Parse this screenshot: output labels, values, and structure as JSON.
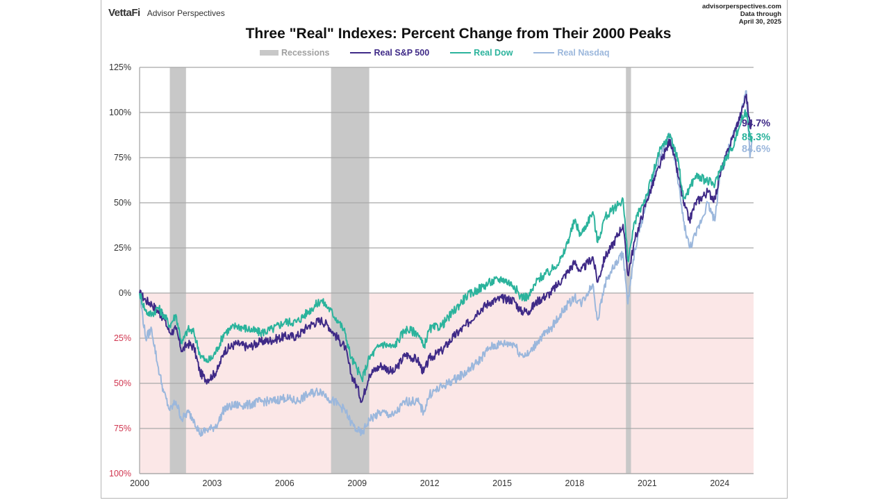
{
  "header": {
    "brand_logo": "VettaFi",
    "brand_name": "Advisor Perspectives",
    "source_site": "advisorperspectives.com",
    "data_through_label": "Data through",
    "data_through_date": "April 30, 2025"
  },
  "colors": {
    "sp500": "#3f2a87",
    "dow": "#2bb39c",
    "nasdaq": "#9bb7dc",
    "recession": "#c8c8c8",
    "negative_zone": "#fbe7e7",
    "negative_tick": "#d0354f",
    "grid": "#a8a8a8"
  },
  "chart_data": {
    "type": "line",
    "title": "Three \"Real\" Indexes: Percent Change from Their 2000 Peaks",
    "xlabel": "",
    "ylabel": "",
    "xlim": [
      2000.0,
      2025.4
    ],
    "ylim": [
      -100,
      125
    ],
    "x_ticks": [
      2000,
      2003,
      2006,
      2009,
      2012,
      2015,
      2018,
      2021,
      2024
    ],
    "x_tick_labels": [
      "2000",
      "2003",
      "2006",
      "2009",
      "2012",
      "2015",
      "2018",
      "2021",
      "2024"
    ],
    "y_ticks": [
      125,
      100,
      75,
      50,
      25,
      0,
      -25,
      -50,
      -75,
      -100
    ],
    "y_tick_labels": [
      "125%",
      "100%",
      "75%",
      "50%",
      "25%",
      "0%",
      "25%",
      "50%",
      "75%",
      "100%"
    ],
    "grid": true,
    "legend_position": "top-center",
    "legend": [
      "Recessions",
      "Real S&P 500",
      "Real Dow",
      "Real Nasdaq"
    ],
    "recessions": [
      {
        "start": 2001.25,
        "end": 2001.92
      },
      {
        "start": 2007.92,
        "end": 2009.5
      },
      {
        "start": 2020.12,
        "end": 2020.33
      }
    ],
    "x": [
      2000.0,
      2000.25,
      2000.5,
      2000.75,
      2001.0,
      2001.25,
      2001.5,
      2001.75,
      2002.0,
      2002.25,
      2002.5,
      2002.75,
      2003.0,
      2003.25,
      2003.5,
      2004.0,
      2004.5,
      2005.0,
      2005.5,
      2006.0,
      2006.5,
      2007.0,
      2007.5,
      2007.8,
      2008.25,
      2008.5,
      2008.75,
      2009.0,
      2009.2,
      2009.5,
      2010.0,
      2010.5,
      2011.0,
      2011.5,
      2011.75,
      2012.0,
      2012.5,
      2013.0,
      2013.5,
      2014.0,
      2014.5,
      2015.0,
      2015.5,
      2015.75,
      2016.1,
      2016.5,
      2017.0,
      2017.5,
      2018.0,
      2018.25,
      2018.75,
      2018.95,
      2019.25,
      2019.5,
      2020.0,
      2020.2,
      2020.5,
      2021.0,
      2021.5,
      2021.95,
      2022.3,
      2022.5,
      2022.75,
      2023.0,
      2023.5,
      2023.8,
      2024.0,
      2024.5,
      2024.9,
      2025.1,
      2025.25,
      2025.33
    ],
    "series": [
      {
        "name": "Real S&P 500",
        "end_label": "94.7%",
        "values": [
          0,
          -4,
          -6,
          -10,
          -14,
          -22,
          -20,
          -32,
          -28,
          -30,
          -44,
          -48,
          -46,
          -42,
          -32,
          -28,
          -30,
          -27,
          -26,
          -24,
          -24,
          -18,
          -15,
          -18,
          -26,
          -30,
          -45,
          -52,
          -60,
          -45,
          -40,
          -44,
          -34,
          -37,
          -44,
          -36,
          -32,
          -24,
          -18,
          -10,
          -5,
          -3,
          -4,
          -10,
          -10,
          -4,
          0,
          8,
          17,
          12,
          20,
          6,
          20,
          25,
          38,
          10,
          30,
          52,
          70,
          85,
          64,
          50,
          40,
          50,
          56,
          52,
          65,
          85,
          100,
          110,
          92,
          94.7
        ]
      },
      {
        "name": "Real Dow",
        "end_label": "85.3%",
        "values": [
          0,
          -10,
          -12,
          -8,
          -12,
          -18,
          -12,
          -28,
          -20,
          -22,
          -34,
          -38,
          -36,
          -30,
          -22,
          -18,
          -20,
          -22,
          -20,
          -16,
          -16,
          -10,
          -4,
          -8,
          -16,
          -22,
          -36,
          -42,
          -48,
          -36,
          -28,
          -30,
          -20,
          -22,
          -30,
          -20,
          -18,
          -10,
          -2,
          2,
          6,
          8,
          4,
          -2,
          -2,
          8,
          12,
          20,
          40,
          32,
          45,
          28,
          42,
          45,
          52,
          18,
          40,
          55,
          78,
          88,
          72,
          52,
          58,
          65,
          62,
          60,
          68,
          80,
          96,
          100,
          88,
          85.3
        ]
      },
      {
        "name": "Real Nasdaq",
        "end_label": "84.6%",
        "values": [
          0,
          -25,
          -20,
          -40,
          -55,
          -65,
          -60,
          -70,
          -66,
          -70,
          -78,
          -76,
          -75,
          -72,
          -64,
          -62,
          -62,
          -60,
          -60,
          -58,
          -60,
          -56,
          -54,
          -58,
          -62,
          -65,
          -72,
          -76,
          -78,
          -70,
          -66,
          -68,
          -60,
          -60,
          -66,
          -56,
          -52,
          -48,
          -44,
          -38,
          -30,
          -28,
          -28,
          -34,
          -34,
          -26,
          -20,
          -10,
          -2,
          -6,
          5,
          -15,
          5,
          12,
          22,
          -6,
          25,
          52,
          75,
          88,
          60,
          40,
          25,
          32,
          50,
          40,
          65,
          85,
          100,
          112,
          75,
          84.6
        ]
      }
    ]
  }
}
